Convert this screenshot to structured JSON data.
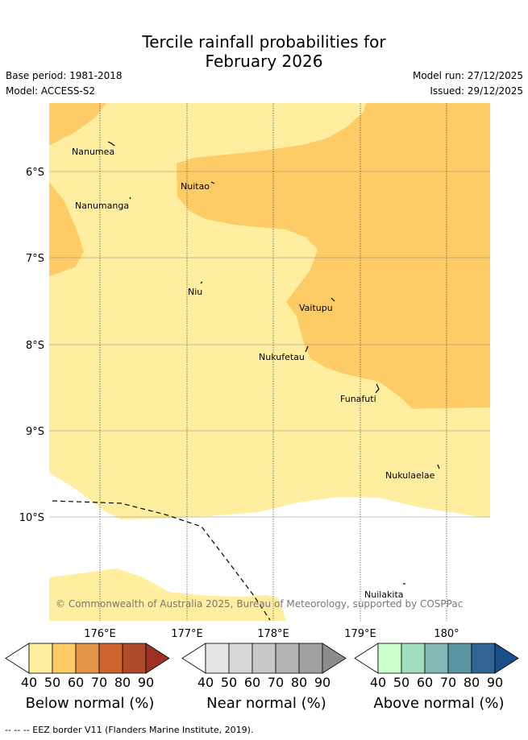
{
  "title": {
    "line1": "Tercile rainfall probabilities for",
    "line2": "February 2026"
  },
  "meta": {
    "base_period": "Base period: 1981-2018",
    "model": "Model: ACCESS-S2",
    "model_run": "Model run: 27/12/2025",
    "issued": "Issued: 29/12/2025"
  },
  "map": {
    "lat_labels": [
      "6°S",
      "7°S",
      "8°S",
      "9°S",
      "10°S"
    ],
    "lon_labels": [
      "176°E",
      "177°E",
      "178°E",
      "179°E",
      "180°"
    ],
    "islands": [
      "Nanumea",
      "Nuitao",
      "Nanumanga",
      "Niu",
      "Vaitupu",
      "Nukufetau",
      "Funafuti",
      "Nukulaelae",
      "Nuilakita"
    ],
    "categories_shown": [
      "40-50% Below normal",
      "50-60% Below normal"
    ],
    "credit": "© Commonwealth of Australia 2025, Bureau of Meteorology, supported by COSPPac"
  },
  "legends": [
    {
      "title": "Below normal (%)",
      "ticks": [
        "40",
        "50",
        "60",
        "70",
        "80",
        "90"
      ],
      "colors": [
        "#ffffff",
        "#ffeda0",
        "#fecc66",
        "#e2964a",
        "#cd6432",
        "#b04b2a",
        "#9c3226"
      ]
    },
    {
      "title": "Near normal (%)",
      "ticks": [
        "40",
        "50",
        "60",
        "70",
        "80",
        "90"
      ],
      "colors": [
        "#ffffff",
        "#e6e6e6",
        "#d7d7d7",
        "#c8c8c8",
        "#b4b4b4",
        "#a0a0a0",
        "#8c8c8c"
      ]
    },
    {
      "title": "Above normal (%)",
      "ticks": [
        "40",
        "50",
        "60",
        "70",
        "80",
        "90"
      ],
      "colors": [
        "#ffffff",
        "#ccffcc",
        "#a0dcbe",
        "#82b9b4",
        "#5a94a0",
        "#326496",
        "#19508c"
      ]
    }
  ],
  "footnote": "-- -- -- EEZ border V11 (Flanders Marine Institute, 2019)."
}
